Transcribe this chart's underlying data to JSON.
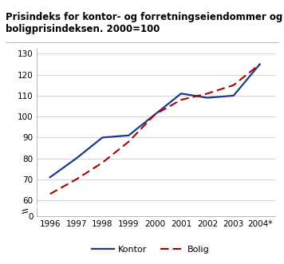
{
  "title": "Prisindeks for kontor- og forretningseiendommer og\nboligprisindeksen. 2000=100",
  "years": [
    1996,
    1997,
    1998,
    1999,
    2000,
    2001,
    2002,
    2003,
    2004
  ],
  "kontor": [
    71,
    80,
    90,
    91,
    101,
    111,
    109,
    110,
    125
  ],
  "bolig": [
    63,
    70,
    78,
    88,
    101,
    108,
    111,
    115,
    125
  ],
  "kontor_color": "#1a3a8c",
  "bolig_color": "#aa0000",
  "xlabels": [
    "1996",
    "1997",
    "1998",
    "1999",
    "2000",
    "2001",
    "2002",
    "2003",
    "2004*"
  ],
  "yticks_main": [
    60,
    70,
    80,
    90,
    100,
    110,
    120,
    130
  ],
  "yticks_zero": [
    0
  ],
  "ylim_main": [
    58,
    133
  ],
  "ylim_zero": [
    0,
    5
  ],
  "xlim": [
    1995.5,
    2004.6
  ],
  "legend_kontor": "Kontor",
  "legend_bolig": "Bolig",
  "background_color": "#ffffff",
  "grid_color": "#cccccc",
  "title_fontsize": 8.5,
  "tick_fontsize": 7.5
}
